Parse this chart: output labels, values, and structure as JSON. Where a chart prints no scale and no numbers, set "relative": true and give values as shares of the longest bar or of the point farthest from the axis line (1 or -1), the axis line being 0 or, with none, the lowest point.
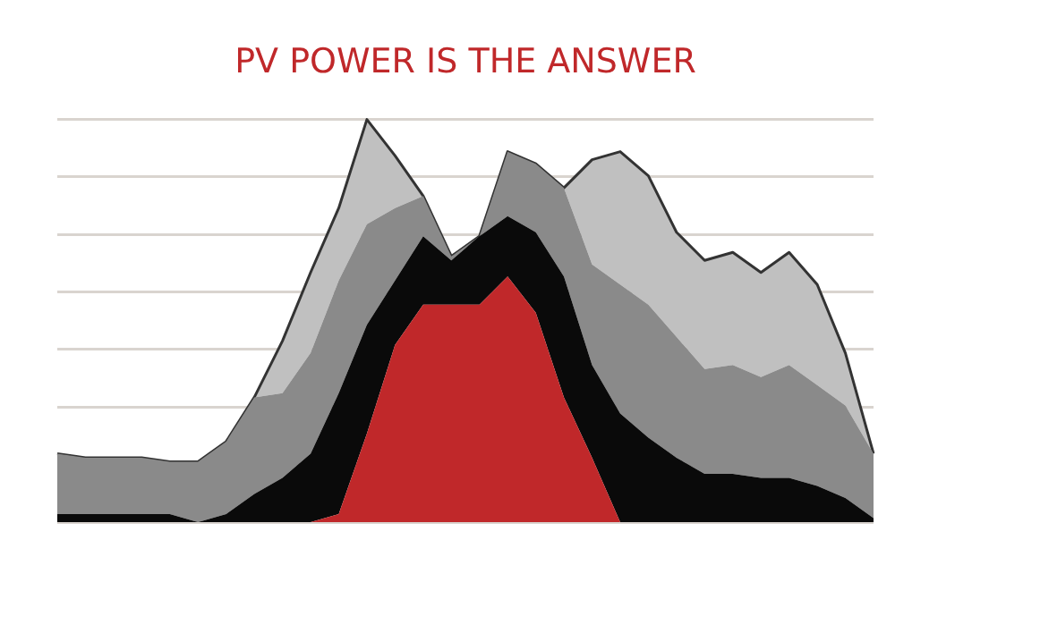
{
  "chart_data": {
    "type": "area",
    "title": "PV POWER IS THE ANSWER",
    "relative": true,
    "stacked": true,
    "grid": "y",
    "legend": false,
    "marker": "none",
    "categories": [
      null,
      null,
      null,
      null,
      null,
      null,
      null,
      null,
      null,
      null,
      null,
      null,
      null,
      null,
      null,
      null,
      null,
      null,
      null,
      null,
      null,
      null,
      null,
      null,
      null,
      null,
      null,
      null,
      null,
      null
    ],
    "series": [
      {
        "color": "#c0282a",
        "values": [
          0,
          0,
          0,
          0,
          0,
          0,
          0,
          0,
          0,
          0,
          0.02,
          0.22,
          0.44,
          0.54,
          0.54,
          0.54,
          0.61,
          0.52,
          0.31,
          0.16,
          0,
          0,
          0,
          0,
          0,
          0,
          0,
          0,
          0,
          0
        ]
      },
      {
        "color": "#0a0a0a",
        "values": [
          0.02,
          0.02,
          0.02,
          0.02,
          0.02,
          0,
          0.02,
          0.07,
          0.11,
          0.17,
          0.3,
          0.27,
          0.16,
          0.17,
          0.11,
          0.17,
          0.15,
          0.2,
          0.3,
          0.23,
          0.27,
          0.21,
          0.16,
          0.12,
          0.12,
          0.11,
          0.11,
          0.09,
          0.06,
          0.01
        ]
      },
      {
        "color": "#8a8a8a",
        "values": [
          0.15,
          0.14,
          0.14,
          0.14,
          0.13,
          0.15,
          0.18,
          0.24,
          0.21,
          0.25,
          0.28,
          0.25,
          0.18,
          0.1,
          0.01,
          0,
          0.16,
          0.17,
          0.22,
          0.25,
          0.32,
          0.33,
          0.3,
          0.26,
          0.27,
          0.25,
          0.28,
          0.25,
          0.23,
          0.16
        ]
      },
      {
        "color": "#c0c0c0",
        "values": [
          0,
          0,
          0,
          0,
          0,
          0,
          0,
          0,
          0.13,
          0.2,
          0.18,
          0.26,
          0.13,
          0,
          0,
          0,
          0,
          0,
          0,
          0.26,
          0.33,
          0.32,
          0.26,
          0.27,
          0.28,
          0.26,
          0.28,
          0.25,
          0.13,
          0
        ]
      }
    ]
  }
}
